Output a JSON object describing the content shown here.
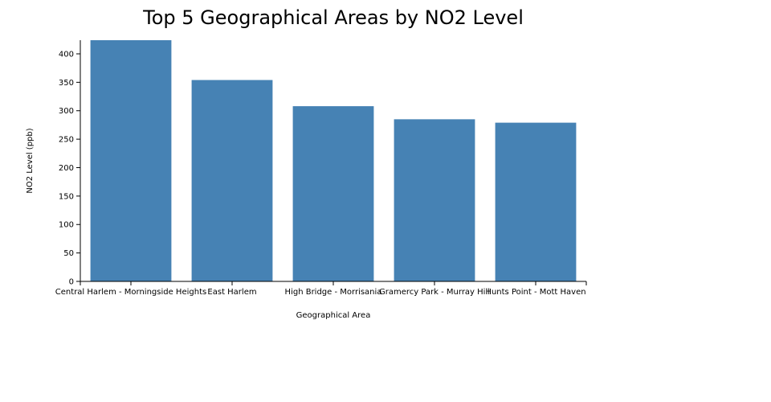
{
  "chart_data": {
    "type": "bar",
    "title": "Top 5 Geographical Areas by NO2 Level",
    "xlabel": "Geographical Area",
    "ylabel": "NO2 Level (ppb)",
    "categories": [
      "Central Harlem - Morningside Heights",
      "East Harlem",
      "High Bridge - Morrisania",
      "Gramercy Park - Murray Hill",
      "Hunts Point - Mott Haven"
    ],
    "values": [
      424,
      354,
      308,
      285,
      279
    ],
    "ylim": [
      0,
      424
    ],
    "yticks": [
      0,
      50,
      100,
      150,
      200,
      250,
      300,
      350,
      400
    ],
    "bar_color": "#4682b4",
    "grid": false,
    "legend": false
  }
}
